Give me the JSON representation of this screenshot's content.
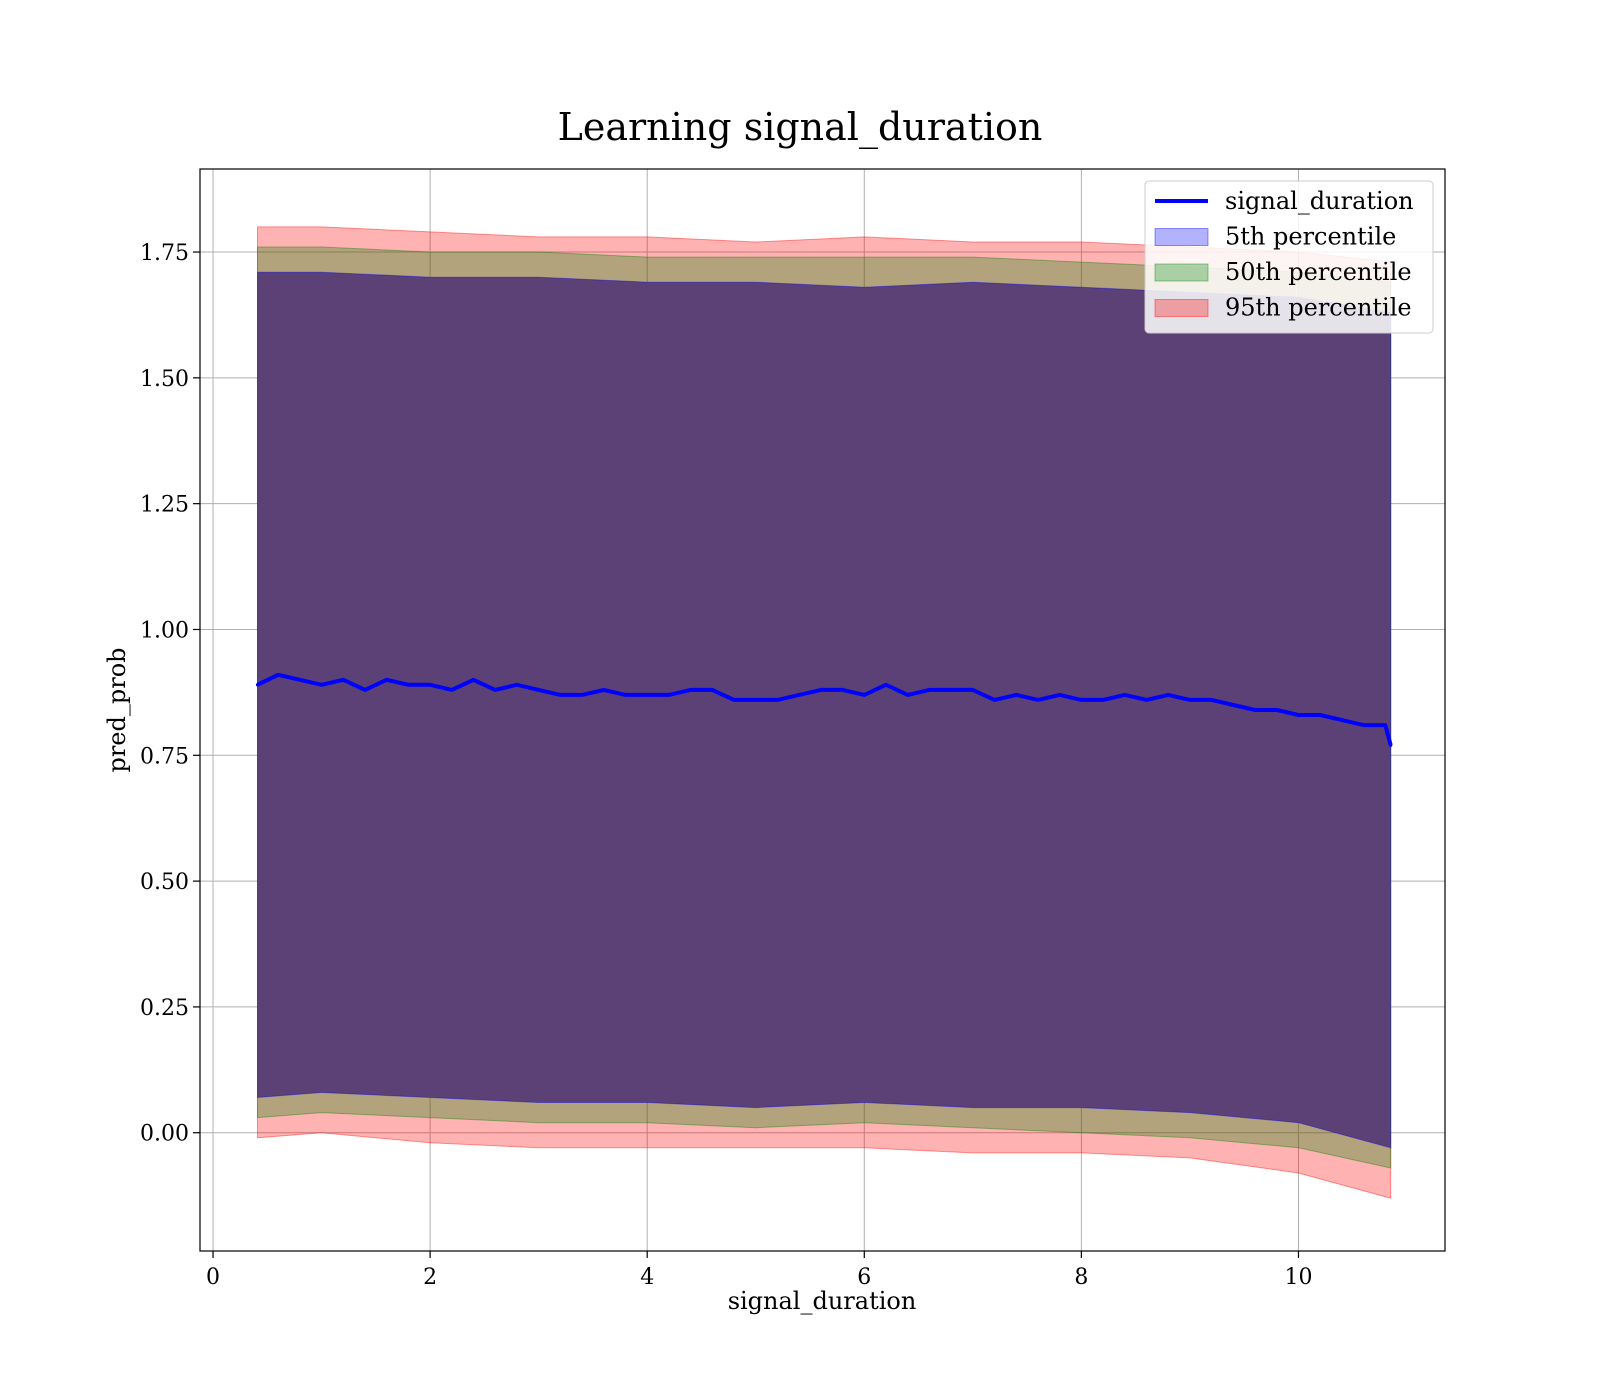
{
  "chart_data": {
    "type": "line",
    "title": "Learning signal_duration",
    "xlabel": "signal_duration",
    "ylabel": "pred_prob",
    "xlim": [
      -0.12,
      11.35
    ],
    "ylim": [
      -0.235,
      1.915
    ],
    "xticks": [
      0,
      2,
      4,
      6,
      8,
      10
    ],
    "yticks": [
      0.0,
      0.25,
      0.5,
      0.75,
      1.0,
      1.25,
      1.5,
      1.75
    ],
    "xtick_labels": [
      "0",
      "2",
      "4",
      "6",
      "8",
      "10"
    ],
    "ytick_labels": [
      "0.00",
      "0.25",
      "0.50",
      "0.75",
      "1.00",
      "1.25",
      "1.50",
      "1.75"
    ],
    "grid": true,
    "legend_position": "top-right",
    "colors": {
      "line": "#0000ff",
      "p5": "#0000ff",
      "p50": "#008000",
      "p95": "#ff0000",
      "band_fill": "#a0707a"
    },
    "legend": [
      {
        "label": "signal_duration",
        "kind": "line",
        "color": "#0000ff"
      },
      {
        "label": "5th percentile",
        "kind": "band",
        "color": "#0000ff"
      },
      {
        "label": "50th percentile",
        "kind": "band",
        "color": "#008000"
      },
      {
        "label": "95th percentile",
        "kind": "band",
        "color": "#ff0000"
      }
    ],
    "series": [
      {
        "name": "signal_duration",
        "x": [
          0.41,
          0.6,
          0.8,
          1.0,
          1.2,
          1.4,
          1.6,
          1.8,
          2.0,
          2.2,
          2.4,
          2.6,
          2.8,
          3.0,
          3.2,
          3.4,
          3.6,
          3.8,
          4.0,
          4.2,
          4.4,
          4.6,
          4.8,
          5.0,
          5.2,
          5.4,
          5.6,
          5.8,
          6.0,
          6.2,
          6.4,
          6.6,
          6.8,
          7.0,
          7.2,
          7.4,
          7.6,
          7.8,
          8.0,
          8.2,
          8.4,
          8.6,
          8.8,
          9.0,
          9.2,
          9.4,
          9.6,
          9.8,
          10.0,
          10.2,
          10.4,
          10.6,
          10.8,
          10.85
        ],
        "y": [
          0.89,
          0.91,
          0.9,
          0.89,
          0.9,
          0.88,
          0.9,
          0.89,
          0.89,
          0.88,
          0.9,
          0.88,
          0.89,
          0.88,
          0.87,
          0.87,
          0.88,
          0.87,
          0.87,
          0.87,
          0.88,
          0.88,
          0.86,
          0.86,
          0.86,
          0.87,
          0.88,
          0.88,
          0.87,
          0.89,
          0.87,
          0.88,
          0.88,
          0.88,
          0.86,
          0.87,
          0.86,
          0.87,
          0.86,
          0.86,
          0.87,
          0.86,
          0.87,
          0.86,
          0.86,
          0.85,
          0.84,
          0.84,
          0.83,
          0.83,
          0.82,
          0.81,
          0.81,
          0.77
        ]
      },
      {
        "name": "5th percentile",
        "x": [
          0.41,
          1.0,
          2.0,
          3.0,
          4.0,
          5.0,
          6.0,
          7.0,
          8.0,
          9.0,
          10.0,
          10.85
        ],
        "upper": [
          1.71,
          1.71,
          1.7,
          1.7,
          1.69,
          1.69,
          1.68,
          1.69,
          1.68,
          1.67,
          1.66,
          1.63
        ],
        "lower": [
          0.07,
          0.08,
          0.07,
          0.06,
          0.06,
          0.05,
          0.06,
          0.05,
          0.05,
          0.04,
          0.02,
          -0.03
        ]
      },
      {
        "name": "50th percentile",
        "x": [
          0.41,
          1.0,
          2.0,
          3.0,
          4.0,
          5.0,
          6.0,
          7.0,
          8.0,
          9.0,
          10.0,
          10.85
        ],
        "upper": [
          1.76,
          1.76,
          1.75,
          1.75,
          1.74,
          1.74,
          1.74,
          1.74,
          1.73,
          1.72,
          1.71,
          1.69
        ],
        "lower": [
          0.03,
          0.04,
          0.03,
          0.02,
          0.02,
          0.01,
          0.02,
          0.01,
          0.0,
          -0.01,
          -0.03,
          -0.07
        ]
      },
      {
        "name": "95th percentile",
        "x": [
          0.41,
          1.0,
          2.0,
          3.0,
          4.0,
          5.0,
          6.0,
          7.0,
          8.0,
          9.0,
          10.0,
          10.85
        ],
        "upper": [
          1.8,
          1.8,
          1.79,
          1.78,
          1.78,
          1.77,
          1.78,
          1.77,
          1.77,
          1.76,
          1.75,
          1.73
        ],
        "lower": [
          -0.01,
          0.0,
          -0.02,
          -0.03,
          -0.03,
          -0.03,
          -0.03,
          -0.04,
          -0.04,
          -0.05,
          -0.08,
          -0.13
        ]
      }
    ]
  }
}
